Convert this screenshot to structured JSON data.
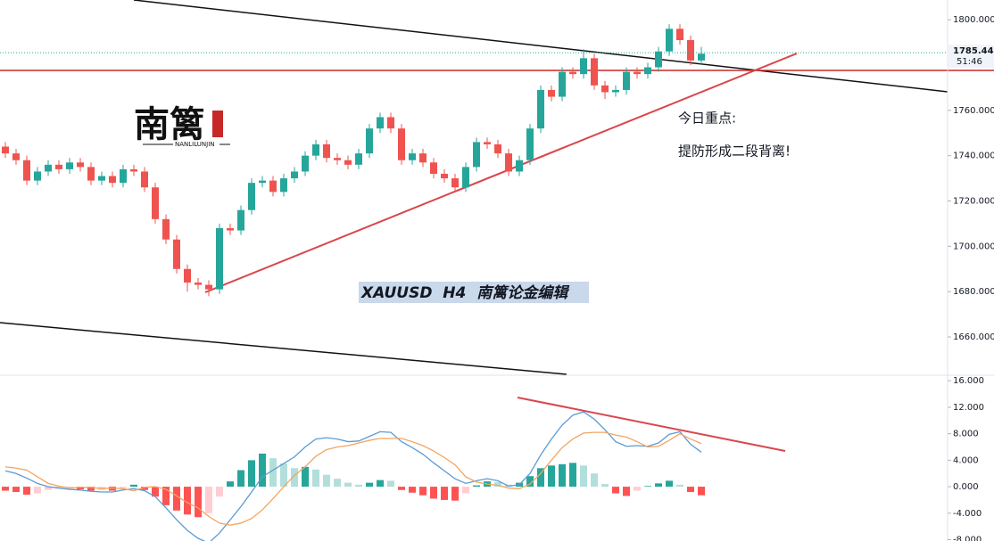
{
  "chart_data": [
    {
      "type": "candlestick",
      "open": [
        1744,
        1741,
        1738,
        1729,
        1733,
        1736,
        1734,
        1737,
        1735,
        1729,
        1731,
        1728,
        1734,
        1733,
        1726,
        1712,
        1703,
        1690,
        1684,
        1683,
        1681,
        1708,
        1707,
        1716,
        1728,
        1729,
        1724,
        1730,
        1733,
        1740,
        1745,
        1739,
        1738,
        1736,
        1741,
        1752,
        1757,
        1752,
        1738,
        1741,
        1737,
        1732,
        1730,
        1726,
        1735,
        1746,
        1745,
        1741,
        1733,
        1738,
        1752,
        1769,
        1766,
        1777,
        1776,
        1783,
        1771,
        1768,
        1769,
        1777,
        1776,
        1779,
        1786,
        1796,
        1791,
        1782
      ],
      "high": [
        1746,
        1743,
        1740,
        1735,
        1738,
        1738,
        1739,
        1739,
        1737,
        1733,
        1733,
        1736,
        1736,
        1735,
        1728,
        1714,
        1705,
        1692,
        1686,
        1685,
        1710,
        1710,
        1718,
        1730,
        1731,
        1731,
        1732,
        1735,
        1742,
        1747,
        1747,
        1741,
        1740,
        1743,
        1754,
        1759,
        1759,
        1754,
        1743,
        1743,
        1739,
        1734,
        1732,
        1737,
        1748,
        1748,
        1747,
        1743,
        1740,
        1754,
        1771,
        1771,
        1779,
        1779,
        1787,
        1785,
        1773,
        1771,
        1779,
        1779,
        1781,
        1788,
        1798,
        1798,
        1793,
        1788
      ],
      "low": [
        1739,
        1736,
        1727,
        1727,
        1731,
        1732,
        1732,
        1733,
        1727,
        1727,
        1726,
        1726,
        1731,
        1724,
        1710,
        1701,
        1688,
        1680,
        1681,
        1678,
        1679,
        1705,
        1705,
        1714,
        1726,
        1722,
        1722,
        1728,
        1731,
        1738,
        1737,
        1736,
        1734,
        1734,
        1739,
        1750,
        1750,
        1736,
        1736,
        1735,
        1730,
        1728,
        1724,
        1724,
        1733,
        1743,
        1739,
        1731,
        1731,
        1736,
        1750,
        1764,
        1764,
        1774,
        1774,
        1769,
        1765,
        1766,
        1767,
        1774,
        1774,
        1777,
        1784,
        1789,
        1780,
        1780
      ],
      "close": [
        1741,
        1738,
        1729,
        1733,
        1736,
        1734,
        1737,
        1735,
        1729,
        1731,
        1728,
        1734,
        1733,
        1726,
        1712,
        1703,
        1690,
        1684,
        1683,
        1681,
        1708,
        1707,
        1716,
        1728,
        1729,
        1724,
        1730,
        1733,
        1740,
        1745,
        1739,
        1738,
        1736,
        1741,
        1752,
        1757,
        1752,
        1738,
        1741,
        1737,
        1732,
        1730,
        1726,
        1735,
        1746,
        1745,
        1741,
        1733,
        1738,
        1752,
        1769,
        1766,
        1777,
        1776,
        1783,
        1771,
        1768,
        1769,
        1777,
        1776,
        1779,
        1786,
        1796,
        1791,
        1782,
        1785
      ],
      "up_color": "#26a69a",
      "down_color": "#ef5350",
      "ylim": [
        1643.5,
        1808.7
      ],
      "yticks": [
        {
          "value": 1660,
          "label": "1660.000"
        },
        {
          "value": 1680,
          "label": "1680.000"
        },
        {
          "value": 1700,
          "label": "1700.000"
        },
        {
          "value": 1720,
          "label": "1720.000"
        },
        {
          "value": 1740,
          "label": "1740.000"
        },
        {
          "value": 1760,
          "label": "1760.000"
        },
        {
          "value": 1800,
          "label": "1800.000"
        }
      ],
      "last_price": {
        "value": 1785.44,
        "label": "1785.440"
      },
      "countdown": "51:46",
      "annotations": [
        "今日重点:",
        "提防形成二段背离!"
      ],
      "watermark": "XAUUSD  H4  南篱论金编辑",
      "logo": {
        "title": "南篱",
        "subtitle": "NANLILUNJIN"
      }
    },
    {
      "type": "macd",
      "histogram": [
        -0.6,
        -0.8,
        -1.2,
        -1.0,
        -0.5,
        -0.3,
        -0.2,
        -0.4,
        -0.6,
        -0.5,
        -0.6,
        -0.2,
        0.3,
        -0.5,
        -1.5,
        -2.8,
        -3.6,
        -4.2,
        -4.6,
        -4.0,
        -1.5,
        0.8,
        2.5,
        4.0,
        5.0,
        4.3,
        3.5,
        2.8,
        3.0,
        2.6,
        1.8,
        1.2,
        0.6,
        0.3,
        0.6,
        1.0,
        0.9,
        -0.5,
        -0.9,
        -1.3,
        -1.8,
        -2.0,
        -2.1,
        -1.0,
        0.2,
        0.8,
        0.7,
        0.3,
        0.6,
        1.6,
        2.8,
        3.2,
        3.4,
        3.6,
        3.2,
        2.0,
        0.4,
        -1.0,
        -1.4,
        -0.6,
        0.1,
        0.5,
        0.9,
        0.3,
        -0.8,
        -1.3
      ],
      "macd": [
        2.4,
        2.0,
        1.3,
        0.5,
        0.0,
        -0.2,
        -0.4,
        -0.5,
        -0.7,
        -0.8,
        -0.8,
        -0.5,
        -0.3,
        -0.6,
        -1.5,
        -3.2,
        -5.0,
        -6.6,
        -7.8,
        -8.5,
        -7.0,
        -5.0,
        -3.0,
        -0.8,
        1.5,
        2.5,
        3.5,
        4.5,
        6.0,
        7.2,
        7.4,
        7.2,
        6.8,
        6.9,
        7.6,
        8.3,
        8.2,
        6.8,
        5.9,
        4.9,
        3.6,
        2.4,
        1.2,
        0.5,
        0.9,
        1.2,
        0.9,
        0.1,
        0.3,
        2.0,
        4.8,
        7.2,
        9.3,
        10.8,
        11.3,
        10.2,
        8.6,
        6.8,
        6.1,
        6.2,
        6.1,
        6.6,
        7.9,
        8.3,
        6.4,
        5.2
      ],
      "signal": [
        3.0,
        2.8,
        2.5,
        1.5,
        0.5,
        0.1,
        -0.2,
        -0.1,
        -0.1,
        -0.3,
        -0.2,
        -0.3,
        -0.6,
        -0.1,
        0.0,
        -0.4,
        -1.4,
        -2.4,
        -3.2,
        -4.5,
        -5.5,
        -5.8,
        -5.5,
        -4.8,
        -3.5,
        -1.8,
        0.0,
        1.7,
        3.0,
        4.6,
        5.6,
        6.0,
        6.2,
        6.6,
        7.0,
        7.3,
        7.3,
        7.3,
        6.8,
        6.2,
        5.4,
        4.4,
        3.3,
        1.5,
        0.7,
        0.4,
        0.2,
        -0.2,
        -0.3,
        0.4,
        2.0,
        4.0,
        5.9,
        7.2,
        8.1,
        8.2,
        8.2,
        7.8,
        7.5,
        6.8,
        6.0,
        6.1,
        7.0,
        8.0,
        7.2,
        6.5
      ],
      "macd_color": "#5b9bd5",
      "signal_color": "#f4a460",
      "hist_colors": {
        "pos_up": "#26a69a",
        "pos_down": "#b2dfdb",
        "neg_down": "#ff5252",
        "neg_up": "#ffcdd2"
      },
      "ylim": [
        -8.2,
        16.7
      ],
      "yticks": [
        {
          "value": -8,
          "label": "-8.000"
        },
        {
          "value": -4,
          "label": "-4.000"
        },
        {
          "value": 0,
          "label": "0.000"
        },
        {
          "value": 4,
          "label": "4.000"
        },
        {
          "value": 8,
          "label": "8.000"
        },
        {
          "value": 12,
          "label": "12.000"
        },
        {
          "value": 16,
          "label": "16.000"
        }
      ]
    }
  ]
}
